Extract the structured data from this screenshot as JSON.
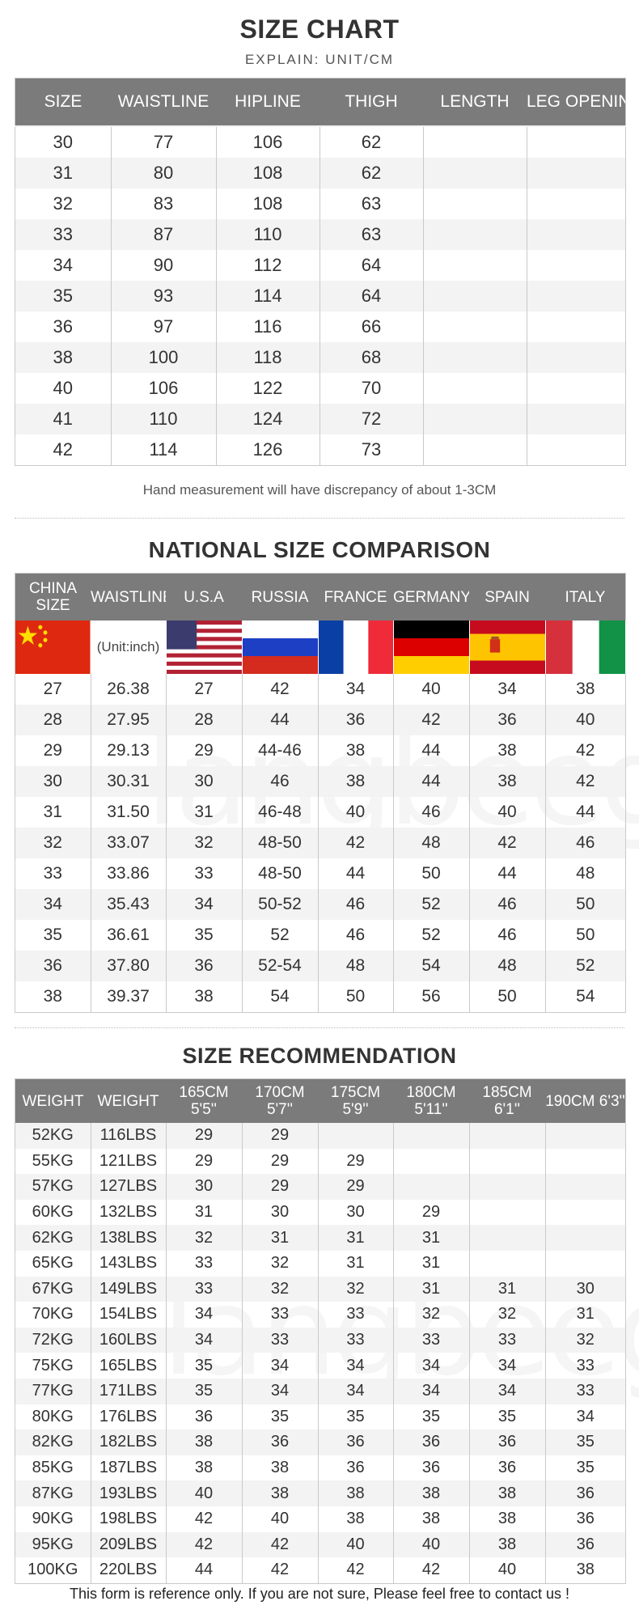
{
  "size_chart": {
    "title": "SIZE CHART",
    "subtitle": "EXPLAIN: UNIT/CM",
    "headers": [
      "SIZE",
      "WAISTLINE",
      "HIPLINE",
      "THIGH",
      "LENGTH",
      "LEG OPENING"
    ],
    "rows": [
      [
        "30",
        "77",
        "106",
        "62",
        "",
        ""
      ],
      [
        "31",
        "80",
        "108",
        "62",
        "",
        ""
      ],
      [
        "32",
        "83",
        "108",
        "63",
        "",
        ""
      ],
      [
        "33",
        "87",
        "110",
        "63",
        "",
        ""
      ],
      [
        "34",
        "90",
        "112",
        "64",
        "",
        ""
      ],
      [
        "35",
        "93",
        "114",
        "64",
        "",
        ""
      ],
      [
        "36",
        "97",
        "116",
        "66",
        "",
        ""
      ],
      [
        "38",
        "100",
        "118",
        "68",
        "",
        ""
      ],
      [
        "40",
        "106",
        "122",
        "70",
        "",
        ""
      ],
      [
        "41",
        "110",
        "124",
        "72",
        "",
        ""
      ],
      [
        "42",
        "114",
        "126",
        "73",
        "",
        ""
      ]
    ],
    "note": "Hand measurement will have discrepancy of about 1-3CM"
  },
  "national": {
    "title": "NATIONAL SIZE COMPARISON",
    "headers": [
      "CHINA SIZE",
      "WAISTLINE",
      "U.S.A",
      "RUSSIA",
      "FRANCE",
      "GERMANY",
      "SPAIN",
      "ITALY"
    ],
    "unit_label": "(Unit:inch)",
    "flags": [
      "china-flag",
      "none",
      "usa-flag",
      "russia-flag",
      "france-flag",
      "germany-flag",
      "spain-flag",
      "italy-flag"
    ],
    "rows": [
      [
        "27",
        "26.38",
        "27",
        "42",
        "34",
        "40",
        "34",
        "38"
      ],
      [
        "28",
        "27.95",
        "28",
        "44",
        "36",
        "42",
        "36",
        "40"
      ],
      [
        "29",
        "29.13",
        "29",
        "44-46",
        "38",
        "44",
        "38",
        "42"
      ],
      [
        "30",
        "30.31",
        "30",
        "46",
        "38",
        "44",
        "38",
        "42"
      ],
      [
        "31",
        "31.50",
        "31",
        "46-48",
        "40",
        "46",
        "40",
        "44"
      ],
      [
        "32",
        "33.07",
        "32",
        "48-50",
        "42",
        "48",
        "42",
        "46"
      ],
      [
        "33",
        "33.86",
        "33",
        "48-50",
        "44",
        "50",
        "44",
        "48"
      ],
      [
        "34",
        "35.43",
        "34",
        "50-52",
        "46",
        "52",
        "46",
        "50"
      ],
      [
        "35",
        "36.61",
        "35",
        "52",
        "46",
        "52",
        "46",
        "50"
      ],
      [
        "36",
        "37.80",
        "36",
        "52-54",
        "48",
        "54",
        "48",
        "52"
      ],
      [
        "38",
        "39.37",
        "38",
        "54",
        "50",
        "56",
        "50",
        "54"
      ]
    ]
  },
  "recommendation": {
    "title": "SIZE RECOMMENDATION",
    "headers": [
      "WEIGHT",
      "WEIGHT",
      "165CM 5'5''",
      "170CM 5'7''",
      "175CM 5'9''",
      "180CM 5'11''",
      "185CM 6'1''",
      "190CM 6'3''"
    ],
    "rows": [
      [
        "52KG",
        "116LBS",
        "29",
        "29",
        "",
        "",
        "",
        ""
      ],
      [
        "55KG",
        "121LBS",
        "29",
        "29",
        "29",
        "",
        "",
        ""
      ],
      [
        "57KG",
        "127LBS",
        "30",
        "29",
        "29",
        "",
        "",
        ""
      ],
      [
        "60KG",
        "132LBS",
        "31",
        "30",
        "30",
        "29",
        "",
        ""
      ],
      [
        "62KG",
        "138LBS",
        "32",
        "31",
        "31",
        "31",
        "",
        ""
      ],
      [
        "65KG",
        "143LBS",
        "33",
        "32",
        "31",
        "31",
        "",
        ""
      ],
      [
        "67KG",
        "149LBS",
        "33",
        "32",
        "32",
        "31",
        "31",
        "30"
      ],
      [
        "70KG",
        "154LBS",
        "34",
        "33",
        "33",
        "32",
        "32",
        "31"
      ],
      [
        "72KG",
        "160LBS",
        "34",
        "33",
        "33",
        "33",
        "33",
        "32"
      ],
      [
        "75KG",
        "165LBS",
        "35",
        "34",
        "34",
        "34",
        "34",
        "33"
      ],
      [
        "77KG",
        "171LBS",
        "35",
        "34",
        "34",
        "34",
        "34",
        "33"
      ],
      [
        "80KG",
        "176LBS",
        "36",
        "35",
        "35",
        "35",
        "35",
        "34"
      ],
      [
        "82KG",
        "182LBS",
        "38",
        "36",
        "36",
        "36",
        "36",
        "35"
      ],
      [
        "85KG",
        "187LBS",
        "38",
        "38",
        "36",
        "36",
        "36",
        "35"
      ],
      [
        "87KG",
        "193LBS",
        "40",
        "38",
        "38",
        "38",
        "38",
        "36"
      ],
      [
        "90KG",
        "198LBS",
        "42",
        "40",
        "38",
        "38",
        "38",
        "36"
      ],
      [
        "95KG",
        "209LBS",
        "42",
        "42",
        "40",
        "40",
        "38",
        "36"
      ],
      [
        "100KG",
        "220LBS",
        "44",
        "42",
        "42",
        "42",
        "40",
        "38"
      ]
    ]
  },
  "watermark": "langbeegar",
  "footer": "This form is reference only. If you are not sure, Please feel free to contact us !"
}
